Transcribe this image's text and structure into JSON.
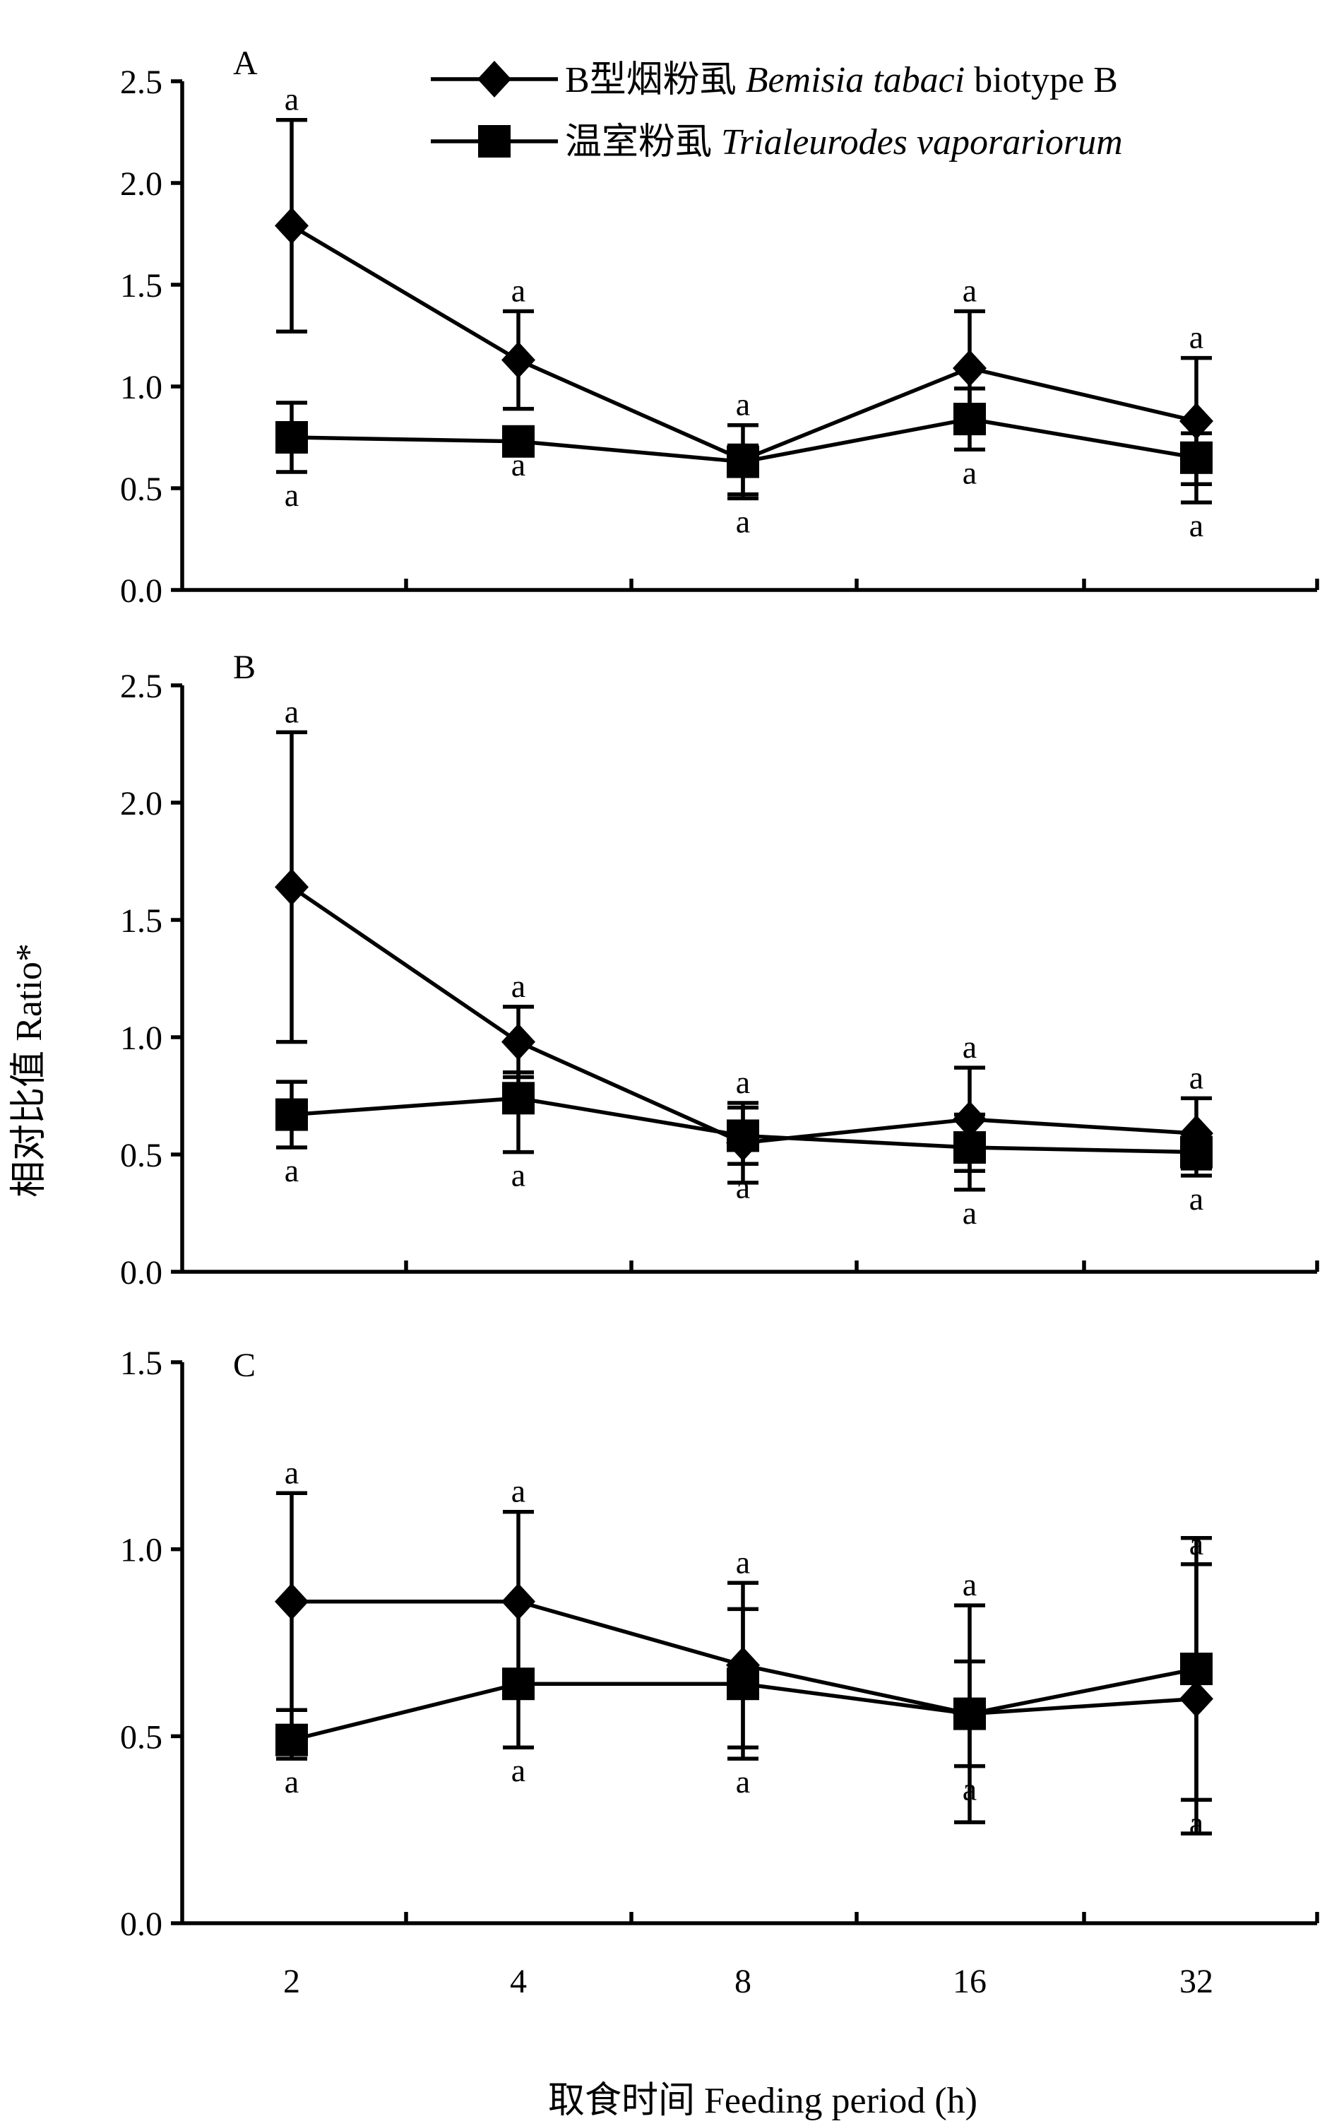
{
  "chart_data": {
    "type": "line",
    "legend": {
      "placement": "top-right",
      "entries": [
        {
          "marker": "diamond",
          "cn": "B型烟粉虱",
          "latin": "Bemisia tabaci",
          "extra": "biotype B"
        },
        {
          "marker": "square",
          "cn": "温室粉虱",
          "latin": "Trialeurodes vaporariorum",
          "extra": ""
        }
      ]
    },
    "ylabel": "相对比值 Ratio*",
    "xlabel": "取食时间 Feeding period (h)",
    "categories": [
      "2",
      "4",
      "8",
      "16",
      "32"
    ],
    "panels": [
      {
        "label": "A",
        "ylim": [
          0,
          2.5
        ],
        "yticks": [
          "0.0",
          "0.5",
          "1.0",
          "1.5",
          "2.0",
          "2.5"
        ],
        "series": [
          {
            "marker": "diamond",
            "values": [
              1.79,
              1.13,
              0.64,
              1.09,
              0.83
            ],
            "err_upper": [
              2.31,
              1.37,
              0.81,
              1.37,
              1.14
            ],
            "err_lower": [
              1.27,
              0.89,
              0.47,
              0.81,
              0.52
            ],
            "sig": [
              "a",
              "a",
              "a",
              "a",
              "a"
            ]
          },
          {
            "marker": "square",
            "values": [
              0.75,
              0.73,
              0.63,
              0.84,
              0.65
            ],
            "err_upper": [
              0.92,
              0.73,
              0.71,
              0.99,
              0.77
            ],
            "err_lower": [
              0.58,
              0.73,
              0.45,
              0.69,
              0.43
            ],
            "sig": [
              "a",
              "a",
              "a",
              "a",
              "a"
            ]
          }
        ]
      },
      {
        "label": "B",
        "ylim": [
          0,
          2.5
        ],
        "yticks": [
          "0.0",
          "0.5",
          "1.0",
          "1.5",
          "2.0",
          "2.5"
        ],
        "series": [
          {
            "marker": "diamond",
            "values": [
              1.64,
              0.98,
              0.55,
              0.65,
              0.59
            ],
            "err_upper": [
              2.3,
              1.13,
              0.72,
              0.87,
              0.74
            ],
            "err_lower": [
              0.98,
              0.83,
              0.38,
              0.43,
              0.44
            ],
            "sig": [
              "a",
              "a",
              "a",
              "a",
              "a"
            ]
          },
          {
            "marker": "square",
            "values": [
              0.67,
              0.74,
              0.58,
              0.53,
              0.51
            ],
            "err_upper": [
              0.81,
              0.85,
              0.7,
              0.67,
              0.59
            ],
            "err_lower": [
              0.53,
              0.51,
              0.46,
              0.35,
              0.41
            ],
            "sig": [
              "a",
              "a",
              "a",
              "a",
              "a"
            ]
          }
        ]
      },
      {
        "label": "C",
        "ylim": [
          0,
          1.5
        ],
        "yticks": [
          "0.0",
          "0.5",
          "1.0",
          "1.5"
        ],
        "series": [
          {
            "marker": "diamond",
            "values": [
              0.86,
              0.86,
              0.69,
              0.56,
              0.6
            ],
            "err_upper": [
              1.15,
              1.1,
              0.91,
              0.85,
              0.96
            ],
            "err_lower": [
              0.57,
              0.62,
              0.47,
              0.27,
              0.24
            ],
            "sig": [
              "a",
              "a",
              "a",
              "a",
              "a"
            ]
          },
          {
            "marker": "square",
            "values": [
              0.49,
              0.64,
              0.64,
              0.56,
              0.68
            ],
            "err_upper": [
              0.57,
              0.64,
              0.84,
              0.7,
              1.03
            ],
            "err_lower": [
              0.44,
              0.47,
              0.44,
              0.42,
              0.33
            ],
            "sig": [
              "a",
              "a",
              "a",
              "a",
              "a"
            ]
          }
        ]
      }
    ]
  }
}
